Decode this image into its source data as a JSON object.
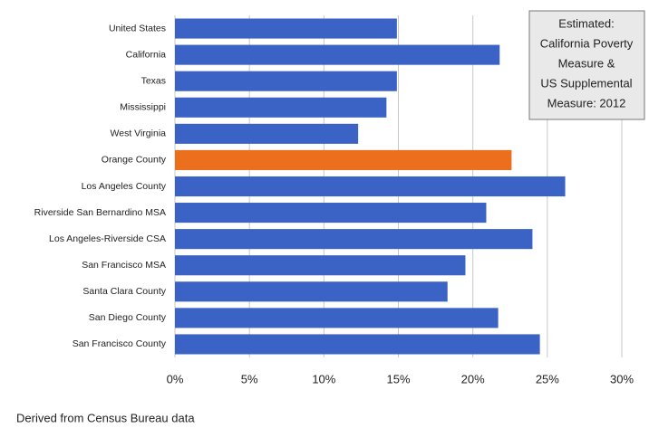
{
  "chart_data": {
    "type": "bar",
    "orientation": "horizontal",
    "categories": [
      "United States",
      "California",
      "Texas",
      "Mississippi",
      "West Virginia",
      "Orange County",
      "Los Angeles County",
      "Riverside San Bernardino MSA",
      "Los Angeles-Riverside CSA",
      "San Francisco MSA",
      "Santa Clara County",
      "San Diego County",
      "San Francisco County"
    ],
    "values": [
      14.9,
      21.8,
      14.9,
      14.2,
      12.3,
      22.6,
      26.2,
      20.9,
      24.0,
      19.5,
      18.3,
      21.7,
      24.5
    ],
    "colors": [
      "#3b63c6",
      "#3b63c6",
      "#3b63c6",
      "#3b63c6",
      "#3b63c6",
      "#ec6f1d",
      "#3b63c6",
      "#3b63c6",
      "#3b63c6",
      "#3b63c6",
      "#3b63c6",
      "#3b63c6",
      "#3b63c6"
    ],
    "xlim": [
      0,
      30
    ],
    "xticks": [
      {
        "value": 0,
        "label": "0%"
      },
      {
        "value": 5,
        "label": "5%"
      },
      {
        "value": 10,
        "label": "10%"
      },
      {
        "value": 15,
        "label": "15%"
      },
      {
        "value": 20,
        "label": "20%"
      },
      {
        "value": 25,
        "label": "25%"
      },
      {
        "value": 30,
        "label": "30%"
      }
    ],
    "grid": true,
    "annotation": [
      "Estimated:",
      "California Poverty",
      "Measure &",
      "US Supplemental",
      "Measure: 2012"
    ],
    "source": "Derived from Census Bureau data"
  }
}
